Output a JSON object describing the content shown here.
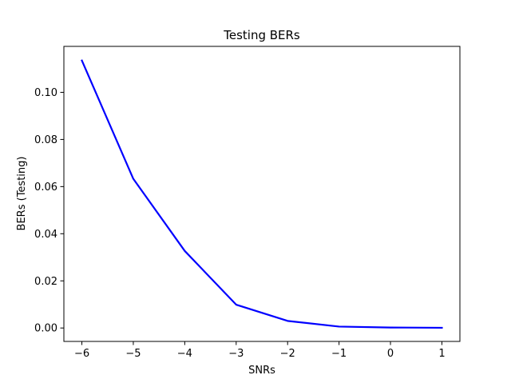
{
  "chart_data": {
    "type": "line",
    "title": "Testing BERs",
    "xlabel": "SNRs",
    "ylabel": "BERs (Testing)",
    "xlim": [
      -6.35,
      1.35
    ],
    "ylim": [
      -0.0057,
      0.1195
    ],
    "xticks": [
      -6,
      -5,
      -4,
      -3,
      -2,
      -1,
      0,
      1
    ],
    "xtick_labels": [
      "−6",
      "−5",
      "−4",
      "−3",
      "−2",
      "−1",
      "0",
      "1"
    ],
    "yticks": [
      0.0,
      0.02,
      0.04,
      0.06,
      0.08,
      0.1
    ],
    "ytick_labels": [
      "0.00",
      "0.02",
      "0.04",
      "0.06",
      "0.08",
      "0.10"
    ],
    "grid": false,
    "series": [
      {
        "color": "#0000ff",
        "x": [
          -6,
          -5,
          -4,
          -3,
          -2,
          -1,
          0,
          1
        ],
        "y": [
          0.1135,
          0.0633,
          0.0327,
          0.0099,
          0.003,
          0.0006,
          0.0002,
          0.0001
        ]
      }
    ]
  }
}
